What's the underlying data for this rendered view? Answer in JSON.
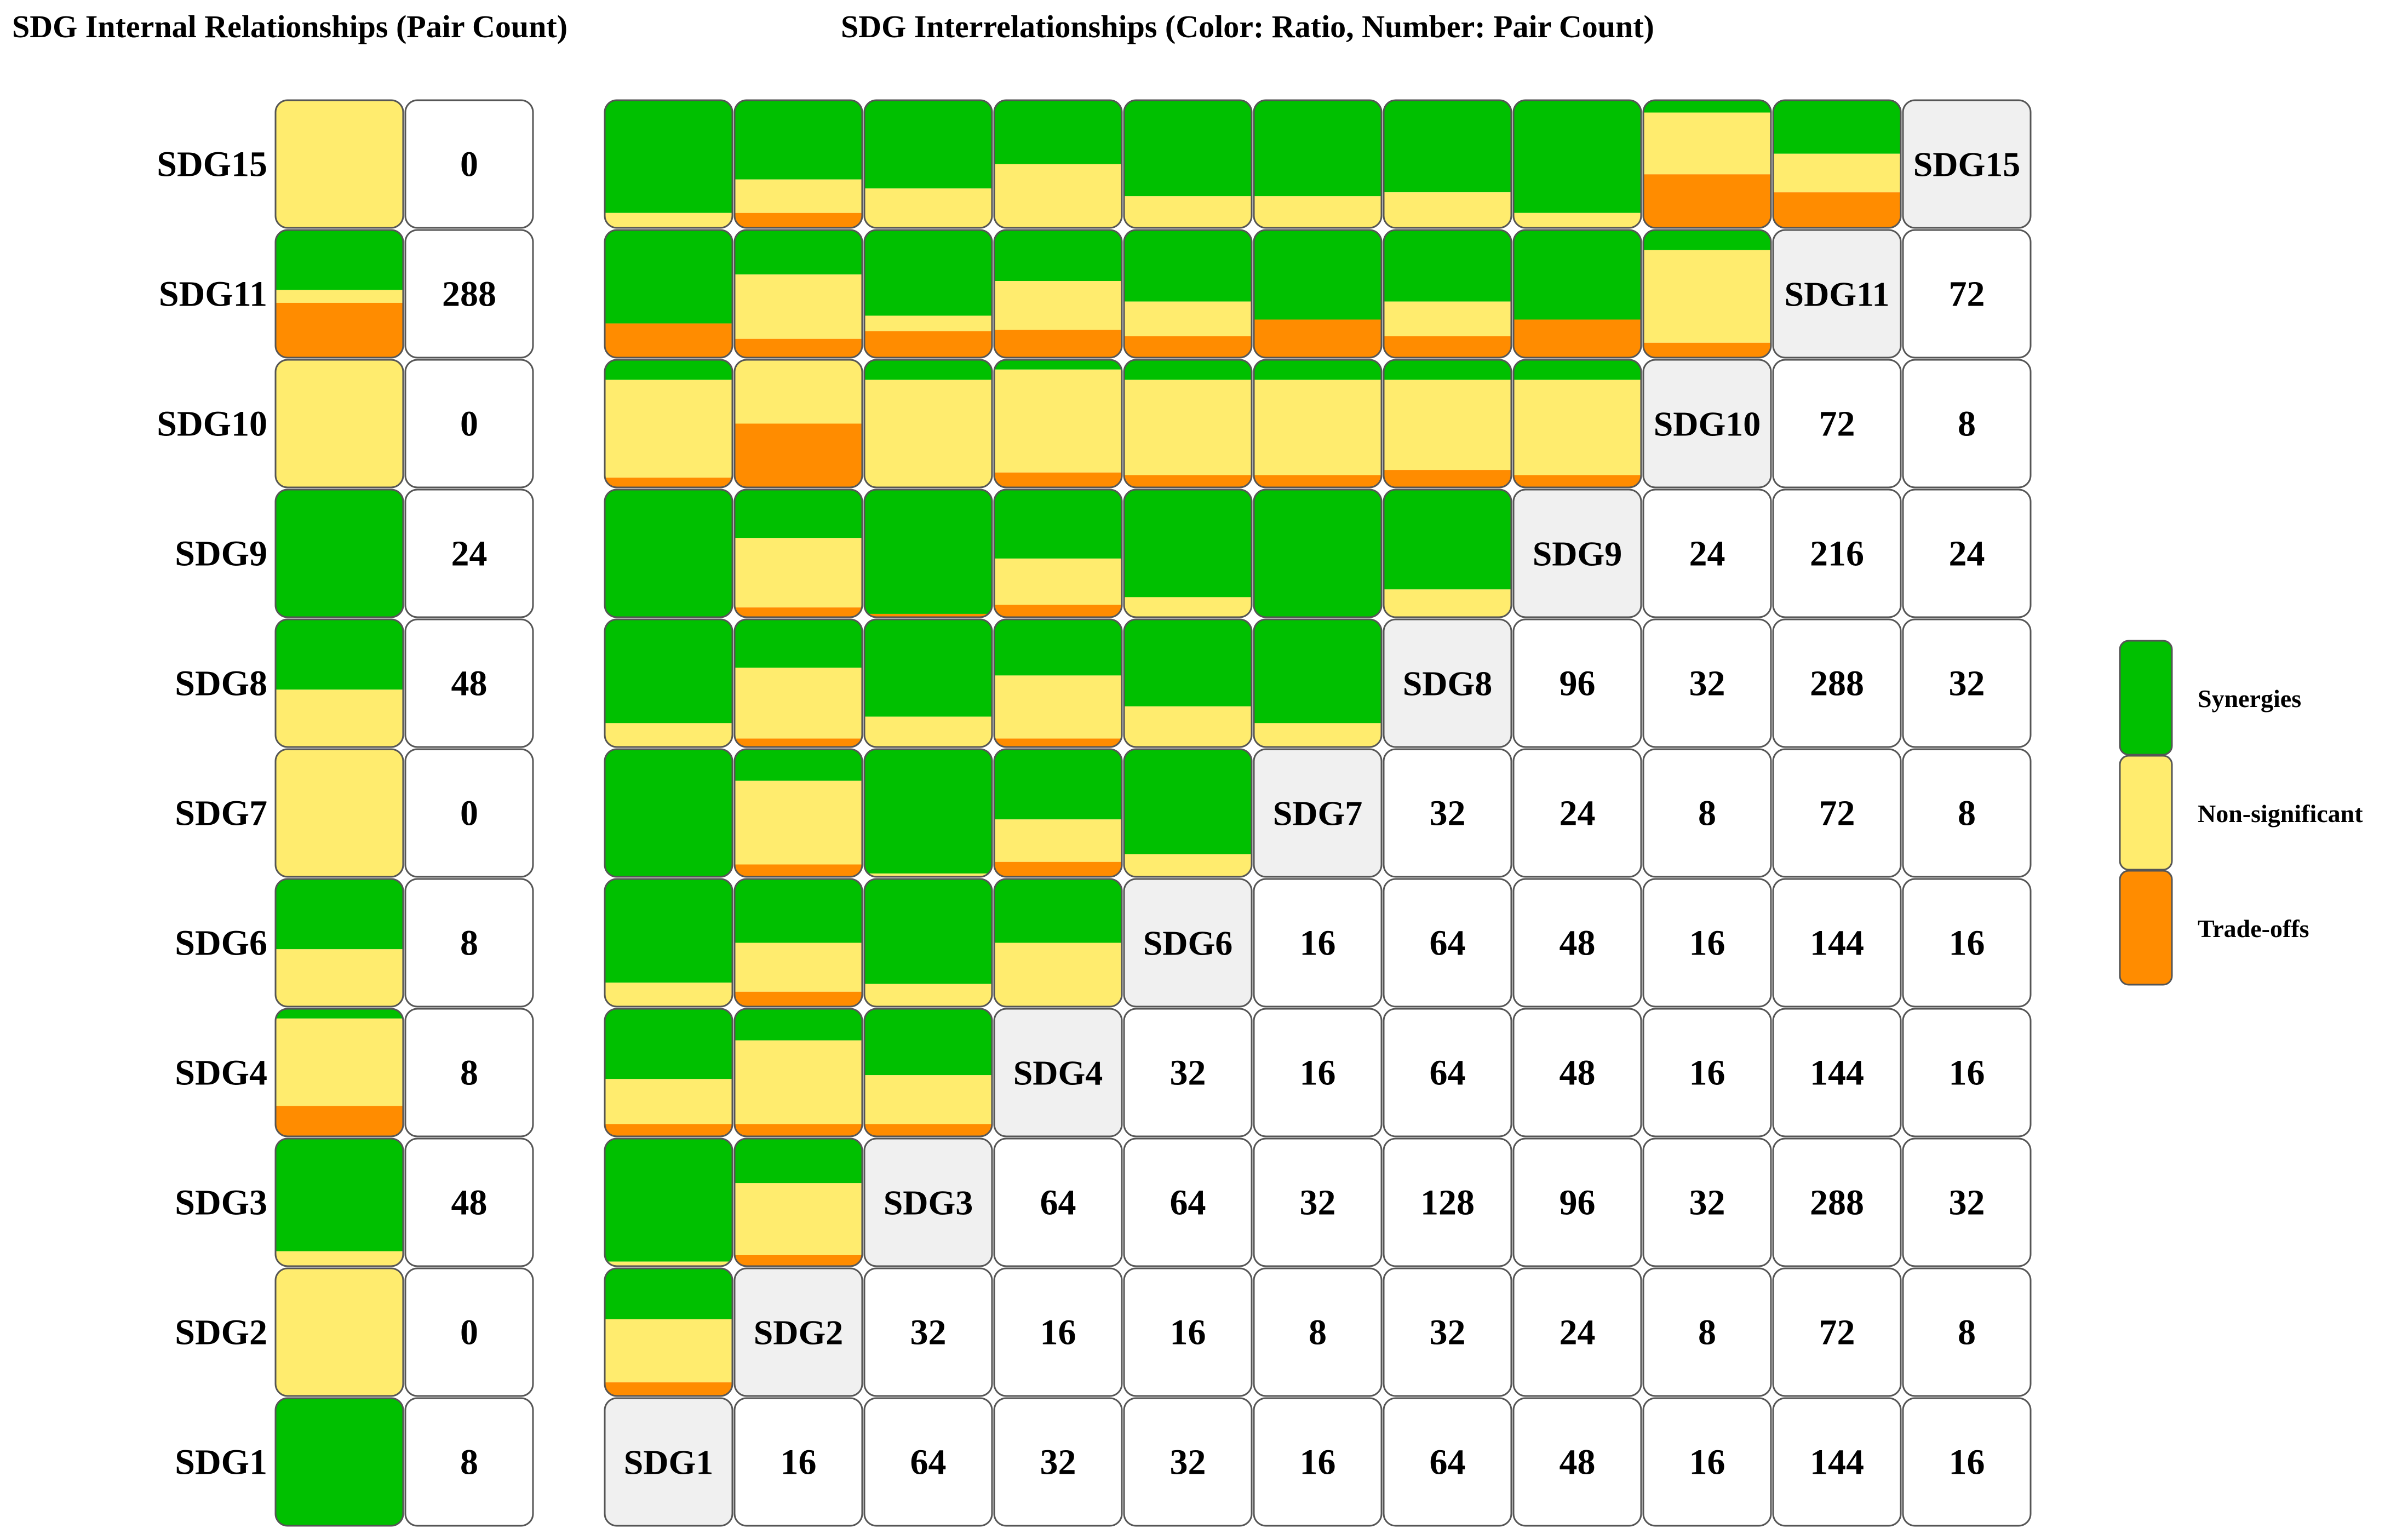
{
  "colors": {
    "synergy": "#00c000",
    "nonsig": "#ffec6e",
    "tradeoff": "#ff8c00",
    "count_bg": "#ffffff",
    "diag_bg": "#f0f0f0",
    "border": "#555555"
  },
  "chart_data": [
    {
      "type": "heatmap",
      "title": "SDG Internal Relationships (Pair Count)",
      "rows": [
        "SDG15",
        "SDG11",
        "SDG10",
        "SDG9",
        "SDG8",
        "SDG7",
        "SDG6",
        "SDG4",
        "SDG3",
        "SDG2",
        "SDG1"
      ],
      "ratios": [
        [
          0.0,
          1.0,
          0.0
        ],
        [
          0.47,
          0.1,
          0.43
        ],
        [
          0.0,
          1.0,
          0.0
        ],
        [
          1.0,
          0.0,
          0.0
        ],
        [
          0.55,
          0.45,
          0.0
        ],
        [
          0.0,
          1.0,
          0.0
        ],
        [
          0.55,
          0.45,
          0.0
        ],
        [
          0.08,
          0.68,
          0.24
        ],
        [
          0.88,
          0.12,
          0.0
        ],
        [
          0.0,
          1.0,
          0.0
        ],
        [
          1.0,
          0.0,
          0.0
        ]
      ],
      "pair_counts": [
        0,
        288,
        0,
        24,
        48,
        0,
        8,
        8,
        48,
        0,
        8
      ]
    },
    {
      "type": "heatmap",
      "title": "SDG Interrelationships (Color: Ratio, Number: Pair Count)",
      "goals": [
        "SDG1",
        "SDG2",
        "SDG3",
        "SDG4",
        "SDG6",
        "SDG7",
        "SDG8",
        "SDG9",
        "SDG10",
        "SDG11",
        "SDG15"
      ],
      "rows": [
        "SDG15",
        "SDG11",
        "SDG10",
        "SDG9",
        "SDG8",
        "SDG7",
        "SDG6",
        "SDG4",
        "SDG3",
        "SDG2",
        "SDG1"
      ],
      "lower_ratios": [
        [
          [
            0.88,
            0.12,
            0.0
          ],
          [
            0.62,
            0.26,
            0.12
          ],
          [
            0.69,
            0.31,
            0.0
          ],
          [
            0.5,
            0.5,
            0.0
          ],
          [
            0.75,
            0.25,
            0.0
          ],
          [
            0.75,
            0.25,
            0.0
          ],
          [
            0.72,
            0.28,
            0.0
          ],
          [
            0.88,
            0.12,
            0.0
          ],
          [
            0.1,
            0.48,
            0.42
          ],
          [
            0.42,
            0.3,
            0.28
          ]
        ],
        [
          [
            0.73,
            0.0,
            0.27
          ],
          [
            0.35,
            0.5,
            0.15
          ],
          [
            0.67,
            0.12,
            0.21
          ],
          [
            0.4,
            0.38,
            0.22
          ],
          [
            0.56,
            0.27,
            0.17
          ],
          [
            0.7,
            0.0,
            0.3
          ],
          [
            0.56,
            0.27,
            0.17
          ],
          [
            0.7,
            0.0,
            0.3
          ],
          [
            0.16,
            0.72,
            0.12
          ]
        ],
        [
          [
            0.16,
            0.76,
            0.08
          ],
          [
            0.0,
            0.5,
            0.5
          ],
          [
            0.16,
            0.84,
            0.0
          ],
          [
            0.08,
            0.8,
            0.12
          ],
          [
            0.16,
            0.74,
            0.1
          ],
          [
            0.16,
            0.74,
            0.1
          ],
          [
            0.16,
            0.7,
            0.14
          ],
          [
            0.16,
            0.74,
            0.1
          ]
        ],
        [
          [
            1.0,
            0.0,
            0.0
          ],
          [
            0.38,
            0.54,
            0.08
          ],
          [
            0.97,
            0.0,
            0.03
          ],
          [
            0.54,
            0.36,
            0.1
          ],
          [
            0.84,
            0.16,
            0.0
          ],
          [
            1.0,
            0.0,
            0.0
          ],
          [
            0.78,
            0.22,
            0.0
          ]
        ],
        [
          [
            0.81,
            0.19,
            0.0
          ],
          [
            0.38,
            0.55,
            0.07
          ],
          [
            0.76,
            0.24,
            0.0
          ],
          [
            0.44,
            0.49,
            0.07
          ],
          [
            0.68,
            0.32,
            0.0
          ],
          [
            0.81,
            0.19,
            0.0
          ]
        ],
        [
          [
            1.0,
            0.0,
            0.0
          ],
          [
            0.25,
            0.65,
            0.1
          ],
          [
            0.97,
            0.03,
            0.0
          ],
          [
            0.55,
            0.33,
            0.12
          ],
          [
            0.82,
            0.18,
            0.0
          ]
        ],
        [
          [
            0.81,
            0.19,
            0.0
          ],
          [
            0.5,
            0.38,
            0.12
          ],
          [
            0.82,
            0.18,
            0.0
          ],
          [
            0.5,
            0.5,
            0.0
          ]
        ],
        [
          [
            0.55,
            0.35,
            0.1
          ],
          [
            0.25,
            0.65,
            0.1
          ],
          [
            0.52,
            0.38,
            0.1
          ]
        ],
        [
          [
            0.96,
            0.04,
            0.0
          ],
          [
            0.35,
            0.56,
            0.09
          ]
        ],
        [
          [
            0.4,
            0.49,
            0.11
          ]
        ],
        []
      ],
      "upper_counts": [
        [],
        [
          72
        ],
        [
          72,
          8
        ],
        [
          24,
          216,
          24
        ],
        [
          96,
          32,
          288,
          32
        ],
        [
          32,
          24,
          8,
          72,
          8
        ],
        [
          16,
          64,
          48,
          16,
          144,
          16
        ],
        [
          32,
          16,
          64,
          48,
          16,
          144,
          16
        ],
        [
          64,
          64,
          32,
          128,
          96,
          32,
          288,
          32
        ],
        [
          32,
          16,
          16,
          8,
          32,
          24,
          8,
          72,
          8
        ],
        [
          16,
          64,
          32,
          32,
          16,
          64,
          48,
          16,
          144,
          16
        ]
      ]
    }
  ],
  "legend": [
    {
      "label": "Synergies",
      "color": "#00c000"
    },
    {
      "label": "Non-significant",
      "color": "#ffec6e"
    },
    {
      "label": "Trade-offs",
      "color": "#ff8c00"
    }
  ]
}
